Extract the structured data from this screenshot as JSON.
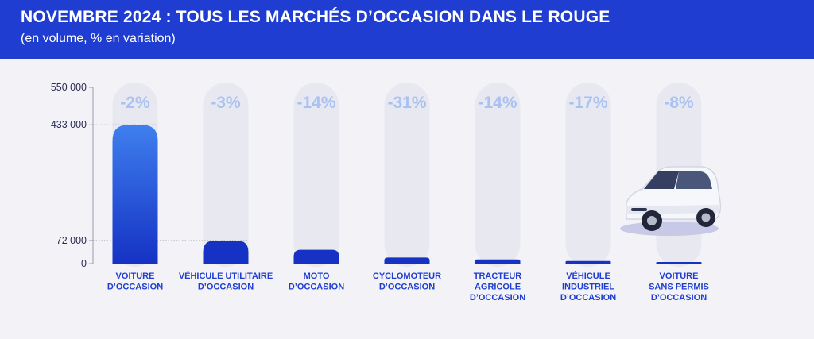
{
  "header": {
    "title": "NOVEMBRE 2024 : TOUS LES MARCHÉS D’OCCASION DANS LE ROUGE",
    "subtitle": "(en volume, % en variation)"
  },
  "colors": {
    "brand": "#1f3ed1",
    "bar_top": "#3f7fee",
    "bar_bottom": "#1532c4",
    "variation_text": "#a9c2f2",
    "pill": "#e8e8f0",
    "background": "#f2f2f7"
  },
  "chart_data": {
    "type": "bar",
    "title": "NOVEMBRE 2024 : TOUS LES MARCHÉS D’OCCASION DANS LE ROUGE",
    "subtitle": "(en volume, % en variation)",
    "xlabel": "",
    "ylabel": "",
    "ylim": [
      0,
      550000
    ],
    "y_ticks": [
      0,
      72000,
      433000,
      550000
    ],
    "y_tick_labels": [
      "0",
      "72 000",
      "433 000",
      "550 000"
    ],
    "reference_lines": [
      433000,
      72000
    ],
    "categories": [
      [
        "VOITURE",
        "D’OCCASION"
      ],
      [
        "VÉHICULE UTILITAIRE",
        "D’OCCASION"
      ],
      [
        "MOTO",
        "D’OCCASION"
      ],
      [
        "CYCLOMOTEUR",
        "D’OCCASION"
      ],
      [
        "TRACTEUR",
        "AGRICOLE",
        "D’OCCASION"
      ],
      [
        "VÉHICULE",
        "INDUSTRIEL",
        "D’OCCASION"
      ],
      [
        "VOITURE",
        "SANS PERMIS",
        "D’OCCASION"
      ]
    ],
    "values": [
      433000,
      72000,
      43000,
      19000,
      13000,
      8000,
      5000
    ],
    "variations": [
      "-2%",
      "-3%",
      "-14%",
      "-31%",
      "-14%",
      "-17%",
      "-8%"
    ],
    "grid": false,
    "legend": "none"
  },
  "illustration": {
    "icon": "car-icon"
  }
}
